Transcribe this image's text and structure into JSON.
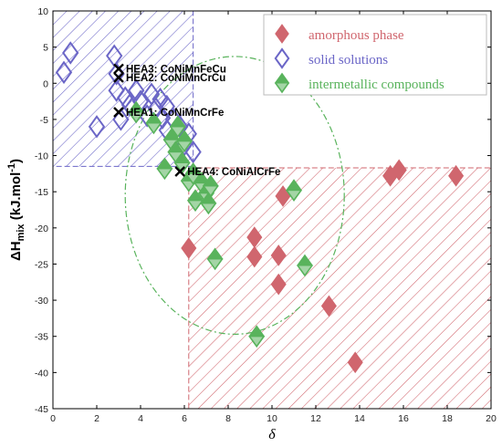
{
  "chart_data": {
    "type": "scatter",
    "xlabel": "δ",
    "ylabel": {
      "base": "ΔH",
      "sub": "mix",
      "units": " (kJ.mol",
      "sup": "-1",
      "close": ")"
    },
    "xlim": [
      0,
      20
    ],
    "ylim": [
      -45,
      10
    ],
    "xticks": [
      0,
      2,
      4,
      6,
      8,
      10,
      12,
      14,
      16,
      18,
      20
    ],
    "yticks": [
      10,
      5,
      0,
      -5,
      -10,
      -15,
      -20,
      -25,
      -30,
      -35,
      -40,
      -45
    ],
    "grid": false,
    "legend_position": "top-right",
    "series": [
      {
        "name": "amorphous phase",
        "color": "#d0666e",
        "marker": "diamond-filled",
        "points": [
          [
            6.2,
            -22.8
          ],
          [
            9.2,
            -21.3
          ],
          [
            9.2,
            -24.0
          ],
          [
            10.3,
            -23.8
          ],
          [
            10.3,
            -27.8
          ],
          [
            10.5,
            -15.6
          ],
          [
            12.6,
            -30.8
          ],
          [
            13.8,
            -38.6
          ],
          [
            15.4,
            -12.8
          ],
          [
            15.8,
            -12.0
          ],
          [
            18.4,
            -12.8
          ]
        ]
      },
      {
        "name": "solid solutions",
        "color": "#6b66c7",
        "marker": "diamond-open",
        "points": [
          [
            0.5,
            1.5
          ],
          [
            0.8,
            4.2
          ],
          [
            2.0,
            -6.0
          ],
          [
            2.8,
            3.8
          ],
          [
            2.9,
            1.3
          ],
          [
            2.9,
            -1.0
          ],
          [
            3.1,
            -5.0
          ],
          [
            3.3,
            -2.0
          ],
          [
            3.5,
            -3.0
          ],
          [
            3.8,
            -1.0
          ],
          [
            4.0,
            -2.5
          ],
          [
            4.3,
            -4.5
          ],
          [
            4.5,
            -1.5
          ],
          [
            4.7,
            -3.5
          ],
          [
            4.9,
            -2.2
          ],
          [
            5.0,
            -4.8
          ],
          [
            5.2,
            -6.5
          ],
          [
            5.2,
            -3.2
          ],
          [
            5.5,
            -5.0
          ],
          [
            5.6,
            -7.5
          ],
          [
            5.8,
            -6.0
          ],
          [
            6.0,
            -8.5
          ],
          [
            6.2,
            -7.0
          ],
          [
            6.4,
            -9.5
          ]
        ]
      },
      {
        "name": "intermetallic compounds",
        "color": "#59b35c",
        "marker": "diamond-half",
        "points": [
          [
            3.8,
            -4.0
          ],
          [
            4.6,
            -5.5
          ],
          [
            5.1,
            -11.8
          ],
          [
            5.4,
            -7.8
          ],
          [
            5.6,
            -9.5
          ],
          [
            5.7,
            -6.0
          ],
          [
            5.9,
            -11.0
          ],
          [
            6.0,
            -8.0
          ],
          [
            6.2,
            -13.5
          ],
          [
            6.4,
            -12.5
          ],
          [
            6.5,
            -16.2
          ],
          [
            6.8,
            -13.8
          ],
          [
            7.0,
            -15.2
          ],
          [
            7.1,
            -16.6
          ],
          [
            7.2,
            -14.2
          ],
          [
            7.4,
            -24.3
          ],
          [
            9.3,
            -35.0
          ],
          [
            11.0,
            -14.8
          ],
          [
            11.5,
            -25.2
          ]
        ]
      },
      {
        "name": "HEA",
        "color": "#000000",
        "marker": "x",
        "points": [
          [
            3.0,
            2.0
          ],
          [
            3.0,
            0.8
          ],
          [
            3.0,
            -4.0
          ],
          [
            5.8,
            -12.2
          ]
        ]
      }
    ],
    "annotations": [
      {
        "text": "HEA3: CoNiMnFeCu",
        "x": 3.0,
        "y": 2.0
      },
      {
        "text": "HEA2: CoNiMnCrCu",
        "x": 3.0,
        "y": 0.8
      },
      {
        "text": "HEA1: CoNiMnCrFe",
        "x": 3.0,
        "y": -4.0
      },
      {
        "text": "HEA4: CoNiAlCrFe",
        "x": 5.8,
        "y": -12.2
      }
    ],
    "regions": [
      {
        "kind": "solid-solution-box",
        "x": [
          0,
          6.4
        ],
        "y": [
          -11.5,
          10
        ],
        "color": "#6b66c7"
      },
      {
        "kind": "amorphous-box",
        "x": [
          6.2,
          20
        ],
        "y": [
          -45,
          -11.7
        ],
        "color": "#d0666e"
      },
      {
        "kind": "intermetallic-ellipse",
        "center": [
          8.3,
          -15.5
        ],
        "radius": [
          5.0,
          19.2
        ],
        "color": "#59b35c"
      }
    ]
  }
}
